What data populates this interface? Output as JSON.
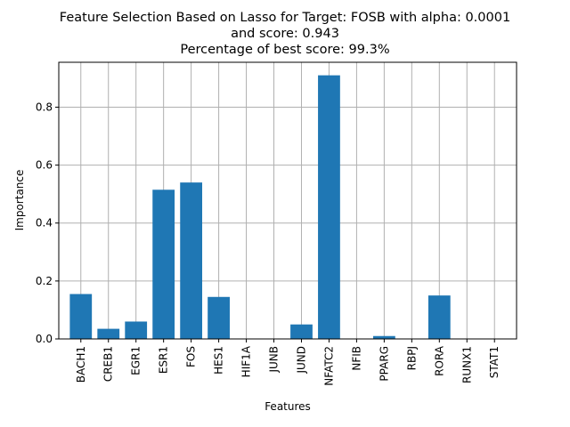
{
  "chart_data": {
    "type": "bar",
    "title_lines": [
      "Feature Selection Based on Lasso for Target: FOSB with alpha: 0.0001",
      "and score: 0.943",
      "Percentage of best score: 99.3%"
    ],
    "xlabel": "Features",
    "ylabel": "Importance",
    "categories": [
      "BACH1",
      "CREB1",
      "EGR1",
      "ESR1",
      "FOS",
      "HES1",
      "HIF1A",
      "JUNB",
      "JUND",
      "NFATC2",
      "NFIB",
      "PPARG",
      "RBPJ",
      "RORA",
      "RUNX1",
      "STAT1"
    ],
    "values": [
      0.155,
      0.035,
      0.06,
      0.515,
      0.54,
      0.145,
      0.0,
      0.0,
      0.05,
      0.91,
      0.0,
      0.01,
      0.0,
      0.15,
      0.0,
      0.0
    ],
    "ylim": [
      0,
      0.955
    ],
    "yticks": [
      "0.0",
      "0.2",
      "0.4",
      "0.6",
      "0.8"
    ],
    "grid": true,
    "bar_color": "#1f77b4",
    "grid_color": "#b0b0b0"
  }
}
